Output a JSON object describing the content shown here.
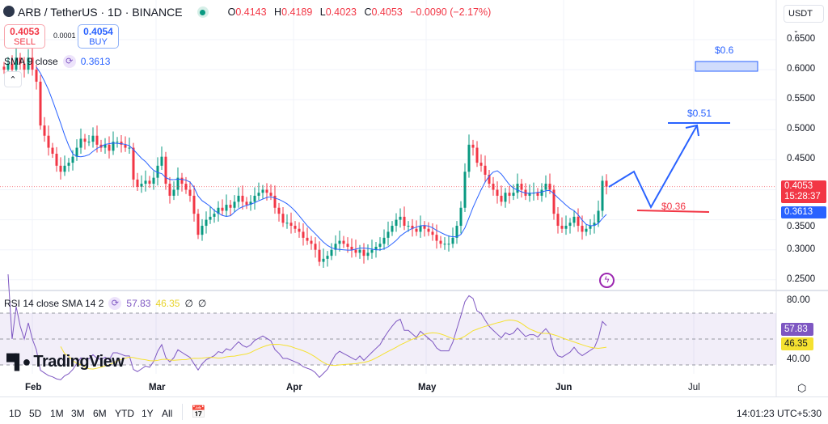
{
  "header": {
    "symbol": "ARB / TetherUS · 1D · BINANCE",
    "open_label": "O",
    "open": "0.4143",
    "high_label": "H",
    "high": "0.4189",
    "low_label": "L",
    "low": "0.4023",
    "close_label": "C",
    "close": "0.4053",
    "change": "−0.0090 (−2.17%)"
  },
  "trade": {
    "sell_price": "0.4053",
    "sell_label": "SELL",
    "spread": "0.0001",
    "buy_price": "0.4054",
    "buy_label": "BUY"
  },
  "sma": {
    "label": "SMA 9 close",
    "value": "0.3613"
  },
  "rsi": {
    "label": "RSI 14 close SMA 14 2",
    "value": "57.83",
    "sma_value": "46.35",
    "extra1": "∅",
    "extra2": "∅"
  },
  "price_axis": {
    "currency": "USDT",
    "ticks": [
      "0.6500",
      "0.6000",
      "0.5500",
      "0.5000",
      "0.4500",
      "0.3500",
      "0.3000",
      "0.2500"
    ],
    "last_price": "0.4053",
    "countdown": "15:28:37",
    "sma_tag": "0.3613"
  },
  "rsi_axis": {
    "ticks": [
      "80.00",
      "40.00"
    ],
    "rsi_tag": "57.83",
    "sma_tag": "46.35"
  },
  "time_axis": [
    "Feb",
    "Mar",
    "Apr",
    "May",
    "Jun",
    "Jul"
  ],
  "annotations": {
    "target1": "$0.6",
    "target2": "$0.51",
    "support": "$0.36"
  },
  "logo": "TradingView",
  "toolbar": {
    "ranges": [
      "1D",
      "5D",
      "1M",
      "3M",
      "6M",
      "YTD",
      "1Y",
      "All"
    ],
    "clock": "14:01:23 UTC+5:30"
  },
  "colors": {
    "up": "#089981",
    "down": "#f23645",
    "sma": "#2962ff",
    "rsi": "#7e57c2",
    "rsi_sma": "#f5e130",
    "drawing": "#2962ff"
  },
  "chart_data": {
    "type": "candlestick",
    "interval": "1D",
    "ylim": [
      0.23,
      0.67
    ],
    "rsi_ylim": [
      20,
      90
    ],
    "rsi_bands": [
      70,
      50,
      30
    ],
    "close": [
      0.6,
      0.61,
      0.6,
      0.62,
      0.61,
      0.6,
      0.62,
      0.6,
      0.58,
      0.507,
      0.49,
      0.47,
      0.46,
      0.44,
      0.43,
      0.44,
      0.445,
      0.455,
      0.47,
      0.485,
      0.48,
      0.48,
      0.49,
      0.475,
      0.47,
      0.475,
      0.465,
      0.48,
      0.48,
      0.475,
      0.47,
      0.47,
      0.417,
      0.405,
      0.41,
      0.415,
      0.41,
      0.42,
      0.44,
      0.455,
      0.41,
      0.39,
      0.4,
      0.42,
      0.41,
      0.4,
      0.39,
      0.36,
      0.325,
      0.34,
      0.35,
      0.355,
      0.36,
      0.37,
      0.365,
      0.375,
      0.37,
      0.38,
      0.39,
      0.38,
      0.375,
      0.38,
      0.39,
      0.395,
      0.4,
      0.395,
      0.39,
      0.37,
      0.36,
      0.345,
      0.345,
      0.34,
      0.335,
      0.33,
      0.32,
      0.315,
      0.31,
      0.3,
      0.28,
      0.285,
      0.29,
      0.3,
      0.31,
      0.315,
      0.31,
      0.305,
      0.3,
      0.295,
      0.3,
      0.29,
      0.295,
      0.3,
      0.305,
      0.31,
      0.32,
      0.33,
      0.34,
      0.35,
      0.355,
      0.34,
      0.34,
      0.335,
      0.33,
      0.34,
      0.335,
      0.33,
      0.325,
      0.315,
      0.31,
      0.31,
      0.31,
      0.32,
      0.34,
      0.37,
      0.43,
      0.475,
      0.47,
      0.445,
      0.44,
      0.425,
      0.41,
      0.4,
      0.39,
      0.38,
      0.395,
      0.39,
      0.395,
      0.41,
      0.4,
      0.39,
      0.395,
      0.395,
      0.39,
      0.4,
      0.41,
      0.4,
      0.36,
      0.34,
      0.335,
      0.34,
      0.345,
      0.355,
      0.34,
      0.33,
      0.335,
      0.34,
      0.345,
      0.365,
      0.415,
      0.4053
    ]
  }
}
